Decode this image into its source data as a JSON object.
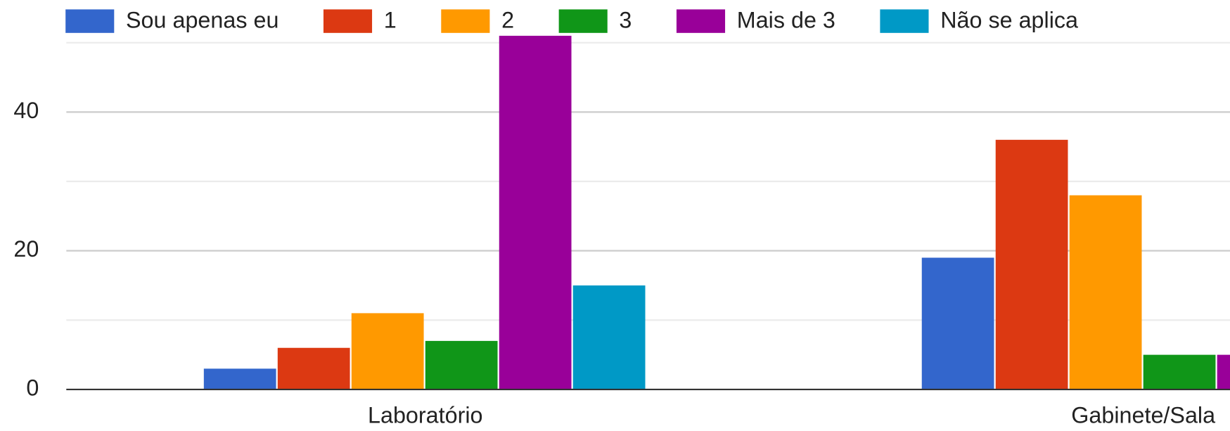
{
  "chart_data": {
    "type": "bar",
    "categories": [
      "Laboratório",
      "Gabinete/Sala"
    ],
    "series": [
      {
        "name": "Sou apenas eu",
        "color": "#3366cc",
        "values": [
          3,
          19
        ]
      },
      {
        "name": "1",
        "color": "#dc3912",
        "values": [
          6,
          36
        ]
      },
      {
        "name": "2",
        "color": "#ff9900",
        "values": [
          11,
          28
        ]
      },
      {
        "name": "3",
        "color": "#109618",
        "values": [
          7,
          5
        ]
      },
      {
        "name": "Mais de 3",
        "color": "#990099",
        "values": [
          51,
          5
        ]
      },
      {
        "name": "Não se aplica",
        "color": "#0099c6",
        "values": [
          15,
          null
        ]
      }
    ],
    "ylim": [
      0,
      50
    ],
    "yticks": [
      0,
      20,
      40
    ],
    "minor_yticks": [
      10,
      30,
      50
    ],
    "grid": true,
    "legend": "top"
  }
}
